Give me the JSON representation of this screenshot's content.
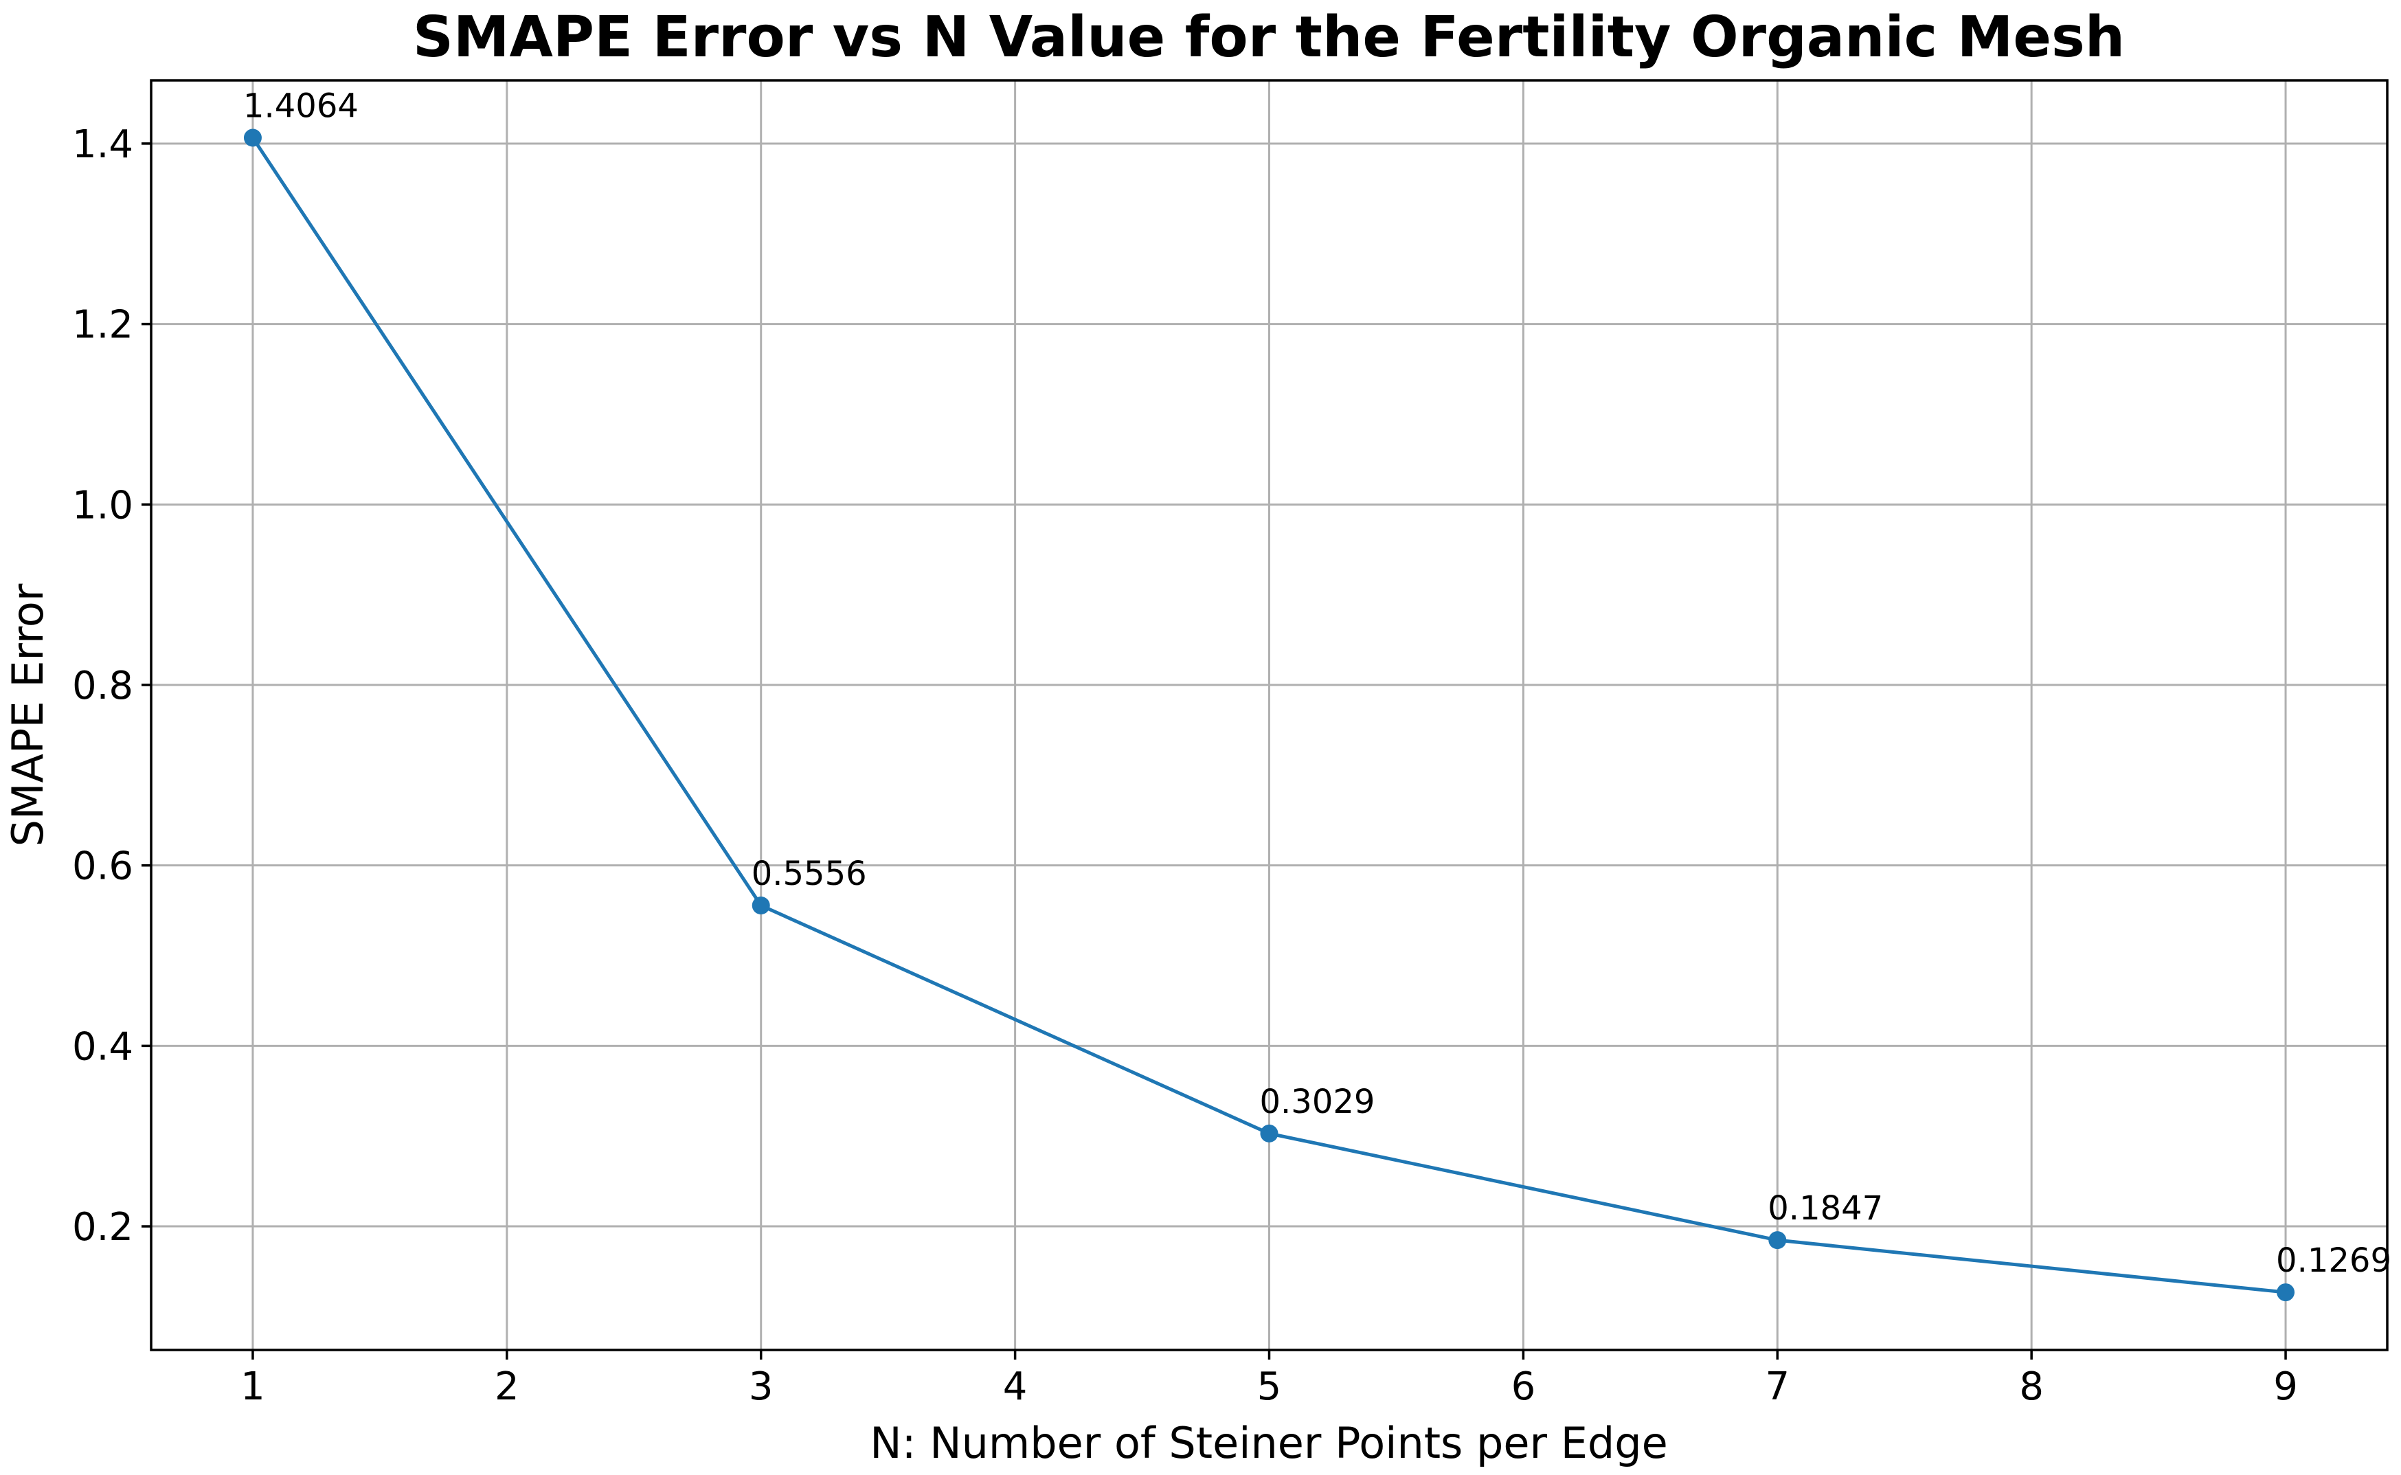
{
  "chart_data": {
    "type": "line",
    "title": "SMAPE Error vs N Value for the Fertility Organic Mesh",
    "xlabel": "N: Number of Steiner Points per Edge",
    "ylabel": "SMAPE Error",
    "x": [
      1,
      3,
      5,
      7,
      9
    ],
    "series": [
      {
        "values": [
          1.4064,
          0.5556,
          0.3029,
          0.1847,
          0.1269
        ],
        "labels": [
          "1.4064",
          "0.5556",
          "0.3029",
          "0.1847",
          "0.1269"
        ],
        "color": "#1f77b4",
        "marker": "circle"
      }
    ],
    "xlim": [
      0.6,
      9.4
    ],
    "ylim": [
      0.063,
      1.47
    ],
    "xticks": [
      1,
      2,
      3,
      4,
      5,
      6,
      7,
      8,
      9
    ],
    "xtick_labels": [
      "1",
      "2",
      "3",
      "4",
      "5",
      "6",
      "7",
      "8",
      "9"
    ],
    "yticks": [
      0.2,
      0.4,
      0.6,
      0.8,
      1.0,
      1.2,
      1.4
    ],
    "ytick_labels": [
      "0.2",
      "0.4",
      "0.6",
      "0.8",
      "1.0",
      "1.2",
      "1.4"
    ],
    "grid": true,
    "legend": false
  }
}
